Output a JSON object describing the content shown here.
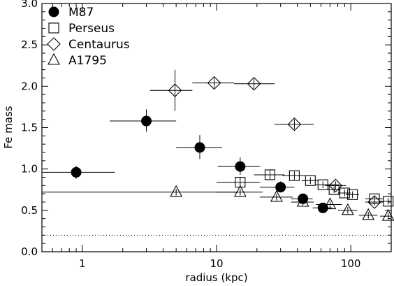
{
  "chart_data": {
    "type": "scatter",
    "xlabel": "radius (kpc)",
    "ylabel": "Fe mass",
    "xscale": "log",
    "xlim": [
      0.5,
      200
    ],
    "ylim": [
      0.0,
      3.0
    ],
    "xticks": [
      1,
      10,
      100
    ],
    "xtick_labels": [
      "1",
      "10",
      "100"
    ],
    "yticks": [
      0.0,
      0.5,
      1.0,
      1.5,
      2.0,
      2.5,
      3.0
    ],
    "ytick_labels": [
      "0.0",
      "0.5",
      "1.0",
      "1.5",
      "2.0",
      "2.5",
      "3.0"
    ],
    "grid": false,
    "legend_position": "top-left",
    "reference_line": {
      "y": 0.2,
      "style": "dotted"
    },
    "series": [
      {
        "name": "M87",
        "marker": "filled-circle",
        "points": [
          {
            "x": 0.9,
            "y": 0.96,
            "xerr": [
              0.5,
              1.75
            ],
            "yerr": [
              0.88,
              1.04
            ]
          },
          {
            "x": 3.0,
            "y": 1.58,
            "xerr": [
              1.6,
              5.0
            ],
            "yerr": [
              1.45,
              1.72
            ]
          },
          {
            "x": 7.5,
            "y": 1.26,
            "xerr": [
              5.0,
              11.0
            ],
            "yerr": [
              1.12,
              1.41
            ]
          },
          {
            "x": 15.0,
            "y": 1.03,
            "xerr": [
              10.2,
              21.0
            ],
            "yerr": [
              0.93,
              1.14
            ]
          },
          {
            "x": 30.0,
            "y": 0.78,
            "xerr": [
              21.0,
              38.0
            ],
            "yerr": [
              0.72,
              0.85
            ]
          },
          {
            "x": 44.0,
            "y": 0.64,
            "xerr": [
              36.0,
              52.0
            ],
            "yerr": [
              0.6,
              0.68
            ]
          },
          {
            "x": 62.0,
            "y": 0.53,
            "xerr": [
              52.0,
              73.0
            ],
            "yerr": [
              0.5,
              0.56
            ]
          }
        ]
      },
      {
        "name": "Perseus",
        "marker": "open-square",
        "points": [
          {
            "x": 15.0,
            "y": 0.84,
            "xerr": [
              10.0,
              21.0
            ],
            "yerr": [
              0.78,
              0.9
            ]
          },
          {
            "x": 25.0,
            "y": 0.93,
            "xerr": [
              19.0,
              32.0
            ],
            "yerr": [
              0.87,
              0.99
            ]
          },
          {
            "x": 38.0,
            "y": 0.92,
            "xerr": [
              31.0,
              46.0
            ],
            "yerr": [
              0.87,
              0.97
            ]
          },
          {
            "x": 50.0,
            "y": 0.86,
            "xerr": [
              43.0,
              57.0
            ],
            "yerr": [
              0.82,
              0.9
            ]
          },
          {
            "x": 62.0,
            "y": 0.81,
            "xerr": [
              55.0,
              70.0
            ],
            "yerr": [
              0.77,
              0.85
            ]
          },
          {
            "x": 75.0,
            "y": 0.75,
            "xerr": [
              67.0,
              84.0
            ],
            "yerr": [
              0.71,
              0.79
            ]
          },
          {
            "x": 90.0,
            "y": 0.71,
            "xerr": [
              80.0,
              100.0
            ],
            "yerr": [
              0.67,
              0.75
            ]
          },
          {
            "x": 103.0,
            "y": 0.69,
            "xerr": [
              92.0,
              115.0
            ],
            "yerr": [
              0.65,
              0.73
            ]
          },
          {
            "x": 150.0,
            "y": 0.64,
            "xerr": [
              128.0,
              175.0
            ],
            "yerr": [
              0.6,
              0.68
            ]
          },
          {
            "x": 190.0,
            "y": 0.61,
            "xerr": [
              165.0,
              200.0
            ],
            "yerr": [
              0.57,
              0.65
            ]
          }
        ]
      },
      {
        "name": "Centaurus",
        "marker": "open-diamond",
        "points": [
          {
            "x": 4.9,
            "y": 1.95,
            "xerr": [
              3.2,
              6.6
            ],
            "yerr": [
              1.7,
              2.2
            ]
          },
          {
            "x": 9.6,
            "y": 2.04,
            "xerr": [
              6.6,
              13.5
            ],
            "yerr": [
              1.98,
              2.1
            ]
          },
          {
            "x": 19.0,
            "y": 2.03,
            "xerr": [
              13.5,
              27.0
            ],
            "yerr": [
              1.97,
              2.09
            ]
          },
          {
            "x": 38.0,
            "y": 1.54,
            "xerr": [
              27.0,
              53.0
            ],
            "yerr": [
              1.48,
              1.6
            ]
          },
          {
            "x": 77.0,
            "y": 0.8,
            "xerr": [
              64.0,
              92.0
            ],
            "yerr": [
              0.75,
              0.85
            ]
          },
          {
            "x": 150.0,
            "y": 0.6,
            "xerr": [
              128.0,
              175.0
            ],
            "yerr": [
              0.56,
              0.64
            ]
          }
        ]
      },
      {
        "name": "A1795",
        "marker": "open-triangle",
        "points": [
          {
            "x": 5.0,
            "y": 0.72,
            "xerr": [
              0.5,
              14.5
            ],
            "yerr": [
              0.68,
              0.76
            ]
          },
          {
            "x": 15.0,
            "y": 0.72,
            "xerr": [
              10.0,
              22.0
            ],
            "yerr": [
              0.68,
              0.76
            ]
          },
          {
            "x": 28.0,
            "y": 0.66,
            "xerr": [
              21.0,
              37.0
            ],
            "yerr": [
              0.62,
              0.7
            ]
          },
          {
            "x": 44.0,
            "y": 0.6,
            "xerr": [
              36.0,
              53.0
            ],
            "yerr": [
              0.56,
              0.64
            ]
          },
          {
            "x": 70.0,
            "y": 0.57,
            "xerr": [
              55.0,
              86.0
            ],
            "yerr": [
              0.53,
              0.61
            ]
          },
          {
            "x": 95.0,
            "y": 0.5,
            "xerr": [
              80.0,
              112.0
            ],
            "yerr": [
              0.46,
              0.54
            ]
          },
          {
            "x": 135.0,
            "y": 0.44,
            "xerr": [
              115.0,
              158.0
            ],
            "yerr": [
              0.4,
              0.48
            ]
          },
          {
            "x": 190.0,
            "y": 0.43,
            "xerr": [
              165.0,
              200.0
            ],
            "yerr": [
              0.39,
              0.47
            ]
          }
        ]
      }
    ]
  }
}
